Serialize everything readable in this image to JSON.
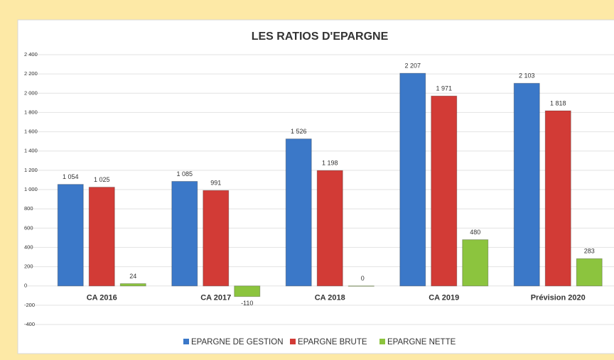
{
  "chart_data": {
    "type": "bar",
    "title": "LES RATIOS D'EPARGNE",
    "categories": [
      "CA 2016",
      "CA 2017",
      "CA 2018",
      "CA 2019",
      "Prévision 2020"
    ],
    "series": [
      {
        "name": "EPARGNE DE GESTION",
        "color": "#3b78c8",
        "values": [
          1054,
          1085,
          1526,
          2207,
          2103
        ],
        "value_labels": [
          "1 054",
          "1 085",
          "1 526",
          "2 207",
          "2 103"
        ]
      },
      {
        "name": "EPARGNE BRUTE",
        "color": "#d23b36",
        "values": [
          1025,
          991,
          1198,
          1971,
          1818
        ],
        "value_labels": [
          "1 025",
          "991",
          "1 198",
          "1 971",
          "1 818"
        ]
      },
      {
        "name": "EPARGNE NETTE",
        "color": "#8cc43e",
        "values": [
          24,
          -110,
          0,
          480,
          283
        ]
      }
    ],
    "ylim": [
      -400,
      2400
    ],
    "yticks": [
      -400,
      -200,
      0,
      200,
      400,
      600,
      800,
      {
        "value": 1000,
        "label": "1 000"
      },
      {
        "value": 1200,
        "label": "1 200"
      },
      {
        "value": 1400,
        "label": "1 400"
      },
      {
        "value": 1600,
        "label": "1 600"
      },
      {
        "value": 1800,
        "label": "1 800"
      },
      {
        "value": 2000,
        "label": "2 000"
      },
      {
        "value": 2200,
        "label": "2 200"
      },
      {
        "value": 2400,
        "label": "2 400"
      }
    ],
    "grid": true,
    "legend": "bottom"
  }
}
